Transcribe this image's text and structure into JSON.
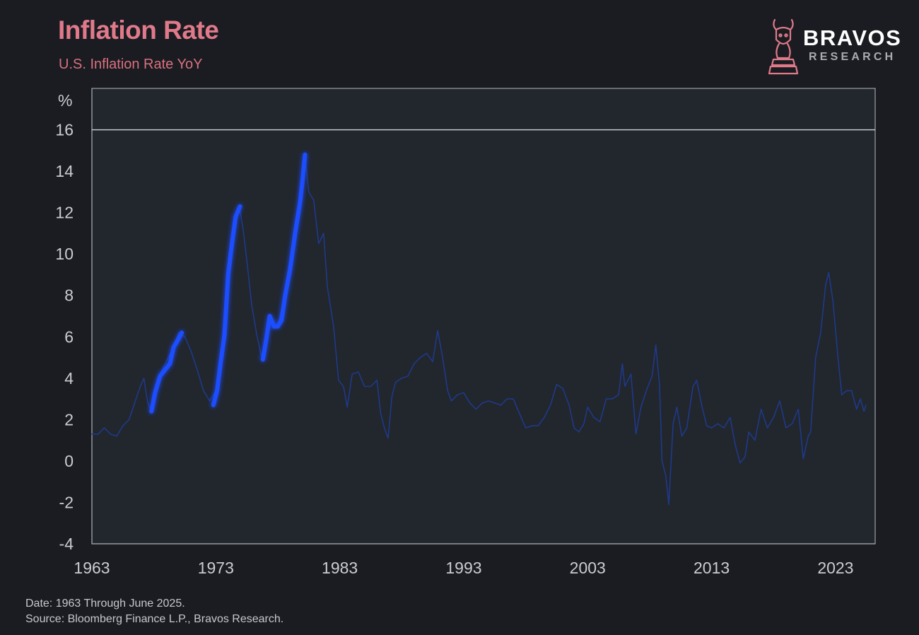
{
  "header": {
    "title": "Inflation Rate",
    "subtitle": "U.S. Inflation Rate YoY"
  },
  "logo": {
    "word": "BRAVOS",
    "sub": "RESEARCH",
    "icon": "bull-knight-icon",
    "color": "#e07a8a"
  },
  "footer": {
    "date_note": "Date: 1963 Through June 2025.",
    "source_note": "Source: Bloomberg Finance L.P., Bravos Research."
  },
  "colors": {
    "background": "#1a1c21",
    "plot_area": "#22262d",
    "base_line": "#1e3a8a",
    "highlight": "#1a4dff",
    "highlight_glow": "#3b6cff",
    "title": "#e07a8a"
  },
  "chart_data": {
    "type": "line",
    "title": "Inflation Rate",
    "subtitle": "U.S. Inflation Rate YoY",
    "ylabel": "%",
    "xlabel": "",
    "xlim": [
      1963,
      2026.2
    ],
    "ylim": [
      -4,
      18
    ],
    "yticks": [
      -4,
      -2,
      0,
      2,
      4,
      6,
      8,
      10,
      12,
      14,
      16
    ],
    "xticks": [
      1963,
      1973,
      1983,
      1993,
      2003,
      2013,
      2023
    ],
    "grid": false,
    "legend": "none",
    "series": [
      {
        "role": "full",
        "points": [
          [
            1963.0,
            1.3
          ],
          [
            1963.5,
            1.3
          ],
          [
            1964.0,
            1.6
          ],
          [
            1964.5,
            1.3
          ],
          [
            1965.0,
            1.2
          ],
          [
            1965.5,
            1.7
          ],
          [
            1966.0,
            2.0
          ],
          [
            1966.5,
            2.9
          ],
          [
            1966.9,
            3.6
          ],
          [
            1967.2,
            4.0
          ],
          [
            1967.5,
            2.8
          ],
          [
            1967.8,
            2.4
          ],
          [
            1968.5,
            4.2
          ],
          [
            1969.5,
            5.4
          ],
          [
            1970.0,
            6.2
          ],
          [
            1970.5,
            6.0
          ],
          [
            1971.0,
            5.3
          ],
          [
            1971.5,
            4.4
          ],
          [
            1972.0,
            3.4
          ],
          [
            1972.5,
            2.9
          ],
          [
            1973.0,
            3.4
          ],
          [
            1973.5,
            5.7
          ],
          [
            1974.0,
            9.4
          ],
          [
            1974.5,
            11.5
          ],
          [
            1974.9,
            12.3
          ],
          [
            1975.2,
            11.2
          ],
          [
            1975.5,
            9.7
          ],
          [
            1975.9,
            7.5
          ],
          [
            1976.3,
            6.1
          ],
          [
            1976.7,
            5.0
          ],
          [
            1977.0,
            5.9
          ],
          [
            1977.3,
            7.0
          ],
          [
            1977.7,
            6.4
          ],
          [
            1978.0,
            6.6
          ],
          [
            1978.5,
            7.8
          ],
          [
            1979.0,
            9.3
          ],
          [
            1979.5,
            11.3
          ],
          [
            1980.0,
            13.9
          ],
          [
            1980.2,
            14.7
          ],
          [
            1980.5,
            13.0
          ],
          [
            1980.9,
            12.6
          ],
          [
            1981.3,
            10.5
          ],
          [
            1981.7,
            11.0
          ],
          [
            1982.0,
            8.4
          ],
          [
            1982.5,
            6.5
          ],
          [
            1982.9,
            3.9
          ],
          [
            1983.3,
            3.6
          ],
          [
            1983.6,
            2.6
          ],
          [
            1984.0,
            4.2
          ],
          [
            1984.5,
            4.3
          ],
          [
            1985.0,
            3.6
          ],
          [
            1985.5,
            3.6
          ],
          [
            1986.0,
            3.9
          ],
          [
            1986.3,
            2.3
          ],
          [
            1986.6,
            1.6
          ],
          [
            1986.9,
            1.1
          ],
          [
            1987.2,
            3.1
          ],
          [
            1987.5,
            3.8
          ],
          [
            1988.0,
            4.0
          ],
          [
            1988.5,
            4.1
          ],
          [
            1989.0,
            4.7
          ],
          [
            1989.5,
            5.0
          ],
          [
            1990.0,
            5.2
          ],
          [
            1990.5,
            4.8
          ],
          [
            1990.9,
            6.3
          ],
          [
            1991.3,
            5.0
          ],
          [
            1991.7,
            3.4
          ],
          [
            1992.0,
            2.9
          ],
          [
            1992.5,
            3.2
          ],
          [
            1993.0,
            3.3
          ],
          [
            1993.5,
            2.8
          ],
          [
            1994.0,
            2.5
          ],
          [
            1994.5,
            2.8
          ],
          [
            1995.0,
            2.9
          ],
          [
            1995.5,
            2.8
          ],
          [
            1996.0,
            2.7
          ],
          [
            1996.5,
            3.0
          ],
          [
            1997.0,
            3.0
          ],
          [
            1997.5,
            2.3
          ],
          [
            1998.0,
            1.6
          ],
          [
            1998.5,
            1.7
          ],
          [
            1999.0,
            1.7
          ],
          [
            1999.5,
            2.1
          ],
          [
            2000.0,
            2.7
          ],
          [
            2000.5,
            3.7
          ],
          [
            2001.0,
            3.5
          ],
          [
            2001.5,
            2.7
          ],
          [
            2001.9,
            1.6
          ],
          [
            2002.3,
            1.4
          ],
          [
            2002.7,
            1.8
          ],
          [
            2003.0,
            2.6
          ],
          [
            2003.5,
            2.1
          ],
          [
            2004.0,
            1.9
          ],
          [
            2004.5,
            3.0
          ],
          [
            2005.0,
            3.0
          ],
          [
            2005.5,
            3.2
          ],
          [
            2005.8,
            4.7
          ],
          [
            2006.0,
            3.6
          ],
          [
            2006.5,
            4.2
          ],
          [
            2006.9,
            1.3
          ],
          [
            2007.3,
            2.6
          ],
          [
            2007.8,
            3.5
          ],
          [
            2008.2,
            4.1
          ],
          [
            2008.5,
            5.6
          ],
          [
            2008.8,
            3.7
          ],
          [
            2009.0,
            0.0
          ],
          [
            2009.3,
            -0.7
          ],
          [
            2009.55,
            -2.1
          ],
          [
            2009.9,
            1.8
          ],
          [
            2010.2,
            2.6
          ],
          [
            2010.6,
            1.2
          ],
          [
            2011.0,
            1.6
          ],
          [
            2011.5,
            3.6
          ],
          [
            2011.8,
            3.9
          ],
          [
            2012.2,
            2.7
          ],
          [
            2012.6,
            1.7
          ],
          [
            2013.0,
            1.6
          ],
          [
            2013.5,
            1.8
          ],
          [
            2014.0,
            1.6
          ],
          [
            2014.5,
            2.1
          ],
          [
            2014.9,
            0.8
          ],
          [
            2015.3,
            -0.1
          ],
          [
            2015.7,
            0.2
          ],
          [
            2016.0,
            1.4
          ],
          [
            2016.5,
            1.0
          ],
          [
            2017.0,
            2.5
          ],
          [
            2017.5,
            1.6
          ],
          [
            2018.0,
            2.1
          ],
          [
            2018.5,
            2.9
          ],
          [
            2019.0,
            1.6
          ],
          [
            2019.5,
            1.8
          ],
          [
            2020.0,
            2.5
          ],
          [
            2020.4,
            0.1
          ],
          [
            2020.8,
            1.2
          ],
          [
            2021.0,
            1.4
          ],
          [
            2021.4,
            5.0
          ],
          [
            2021.8,
            6.2
          ],
          [
            2022.2,
            8.5
          ],
          [
            2022.45,
            9.1
          ],
          [
            2022.8,
            7.7
          ],
          [
            2023.2,
            5.0
          ],
          [
            2023.5,
            3.2
          ],
          [
            2023.9,
            3.4
          ],
          [
            2024.3,
            3.4
          ],
          [
            2024.7,
            2.5
          ],
          [
            2025.0,
            3.0
          ],
          [
            2025.3,
            2.4
          ],
          [
            2025.45,
            2.7
          ]
        ]
      },
      {
        "role": "highlight",
        "points": [
          [
            1967.8,
            2.4
          ],
          [
            1968.1,
            3.3
          ],
          [
            1968.5,
            4.1
          ],
          [
            1968.9,
            4.4
          ],
          [
            1969.3,
            4.7
          ],
          [
            1969.6,
            5.5
          ],
          [
            1970.0,
            5.9
          ],
          [
            1970.25,
            6.2
          ]
        ]
      },
      {
        "role": "highlight",
        "points": [
          [
            1972.8,
            2.7
          ],
          [
            1973.1,
            3.4
          ],
          [
            1973.4,
            4.8
          ],
          [
            1973.7,
            6.1
          ],
          [
            1974.0,
            9.0
          ],
          [
            1974.3,
            10.5
          ],
          [
            1974.6,
            11.8
          ],
          [
            1974.95,
            12.3
          ]
        ]
      },
      {
        "role": "highlight",
        "points": [
          [
            1976.8,
            4.9
          ],
          [
            1977.1,
            6.0
          ],
          [
            1977.35,
            7.0
          ],
          [
            1977.7,
            6.5
          ],
          [
            1978.0,
            6.5
          ],
          [
            1978.3,
            6.8
          ],
          [
            1978.6,
            8.0
          ],
          [
            1979.0,
            9.3
          ],
          [
            1979.4,
            11.0
          ],
          [
            1979.8,
            12.5
          ],
          [
            1980.0,
            13.6
          ],
          [
            1980.2,
            14.8
          ]
        ]
      }
    ]
  }
}
